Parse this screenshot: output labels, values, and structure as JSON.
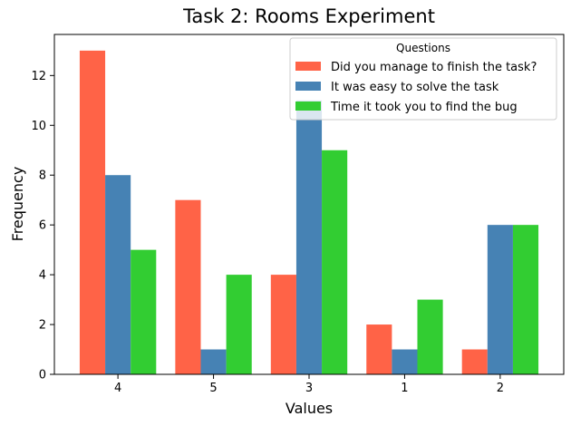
{
  "chart_data": {
    "type": "bar",
    "title": "Task 2: Rooms Experiment",
    "xlabel": "Values",
    "ylabel": "Frequency",
    "categories": [
      "4",
      "5",
      "3",
      "1",
      "2"
    ],
    "ylim": [
      0,
      13.65
    ],
    "yticks": [
      0,
      2,
      4,
      6,
      8,
      10,
      12
    ],
    "grid": false,
    "legend": {
      "title": "Questions",
      "placement": "top-right"
    },
    "series": [
      {
        "name": "Did you manage to finish the task?",
        "color": "#ff6347",
        "values": [
          13,
          7,
          4,
          2,
          1
        ]
      },
      {
        "name": "It was easy to solve the task",
        "color": "#4682b4",
        "values": [
          8,
          1,
          11,
          1,
          6
        ]
      },
      {
        "name": "Time it took you to find the bug",
        "color": "#32cd32",
        "values": [
          5,
          4,
          9,
          3,
          6
        ]
      }
    ]
  }
}
